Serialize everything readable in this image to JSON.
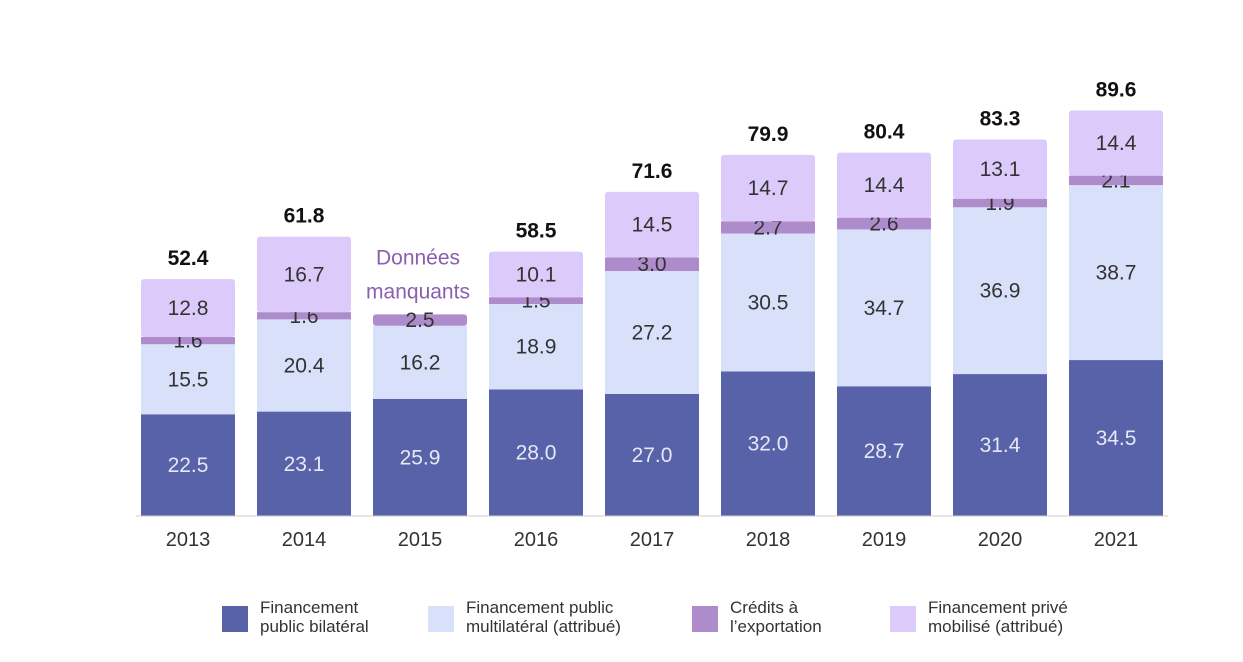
{
  "colors": {
    "bilateral": "#5862a8",
    "multilateral": "#d9e0fa",
    "export": "#ae8ccc",
    "private": "#dccbfa",
    "missing_note": "#8a5fb0"
  },
  "chart_data": {
    "type": "bar",
    "stacked": true,
    "categories": [
      "2013",
      "2014",
      "2015",
      "2016",
      "2017",
      "2018",
      "2019",
      "2020",
      "2021"
    ],
    "series": [
      {
        "name": "Financement public bilatéral",
        "key": "bilateral",
        "values": [
          22.5,
          23.1,
          25.9,
          28.0,
          27.0,
          32.0,
          28.7,
          31.4,
          34.5
        ]
      },
      {
        "name": "Financement public multilatéral (attribué)",
        "key": "multilateral",
        "values": [
          15.5,
          20.4,
          16.2,
          18.9,
          27.2,
          30.5,
          34.7,
          36.9,
          38.7
        ]
      },
      {
        "name": "Crédits à l'exportation",
        "key": "export",
        "values": [
          1.6,
          1.6,
          2.5,
          1.5,
          3.0,
          2.7,
          2.6,
          1.9,
          2.1
        ]
      },
      {
        "name": "Financement privé mobilisé (attribué)",
        "key": "private",
        "values": [
          12.8,
          16.7,
          null,
          10.1,
          14.5,
          14.7,
          14.4,
          13.1,
          14.4
        ]
      }
    ],
    "totals": [
      "52.4",
      "61.8",
      "",
      "58.5",
      "71.6",
      "79.9",
      "80.4",
      "83.3",
      "89.6"
    ],
    "annotations": [
      {
        "category": "2015",
        "lines": [
          "Données",
          "manquants"
        ]
      }
    ],
    "ylim": [
      0,
      100
    ],
    "grid": false,
    "legend_position": "bottom"
  },
  "legend": [
    {
      "key": "bilateral",
      "lines": [
        "Financement",
        "public bilatéral"
      ]
    },
    {
      "key": "multilateral",
      "lines": [
        "Financement public",
        "multilatéral (attribué)"
      ]
    },
    {
      "key": "export",
      "lines": [
        "Crédits à",
        "l’exportation"
      ]
    },
    {
      "key": "private",
      "lines": [
        "Financement privé",
        "mobilisé (attribué)"
      ]
    }
  ]
}
